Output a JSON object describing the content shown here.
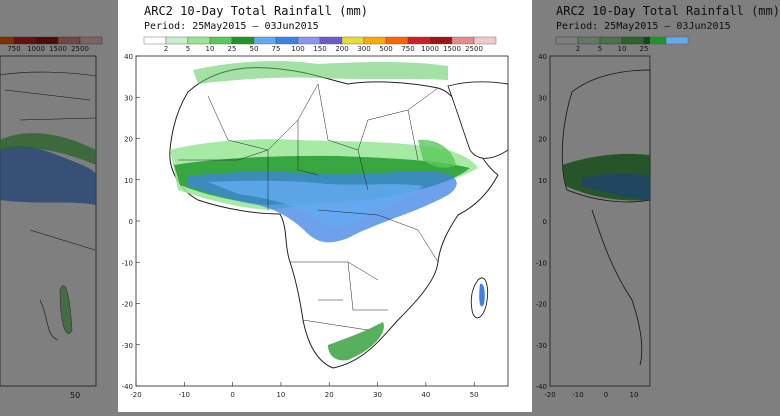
{
  "map": {
    "title": "ARC2 10-Day Total Rainfall (mm)",
    "period_label": "Period:",
    "period_start": "25May2015",
    "period_sep": "–",
    "period_end": "03Jun2015",
    "legend": {
      "labels": [
        "2",
        "5",
        "10",
        "25",
        "50",
        "75",
        "100",
        "150",
        "200",
        "300",
        "500",
        "750",
        "1000",
        "1500",
        "2500"
      ],
      "colors": [
        "#ffffff",
        "#c8f0c8",
        "#96e696",
        "#5ac85a",
        "#1e9628",
        "#64aaf0",
        "#3c82e6",
        "#8c96f0",
        "#6a5ad2",
        "#e6dc32",
        "#ffaa00",
        "#ff6400",
        "#d21e1e",
        "#a01414",
        "#e68c8c",
        "#f5c8c8"
      ]
    },
    "lat_ticks": [
      "40",
      "30",
      "20",
      "10",
      "0",
      "-10",
      "-20",
      "-30",
      "-40"
    ],
    "lon_ticks": [
      "-20",
      "-10",
      "0",
      "10",
      "20",
      "30",
      "40",
      "50"
    ]
  },
  "left_copy": {
    "legend_labels": [
      "750",
      "1000",
      "1500",
      "2500"
    ],
    "lon_ticks": [
      "50"
    ]
  },
  "right_copy": {
    "title": "ARC2 10-Day Total Rainfall (mm)",
    "period": "Period: 25May2015 – 03Jun2015",
    "legend_labels": [
      "2",
      "5",
      "10",
      "25"
    ],
    "lon_ticks": [
      "-20",
      "-10",
      "0",
      "10"
    ],
    "lat_ticks": [
      "40",
      "30",
      "20",
      "10",
      "0",
      "-10",
      "-20",
      "-30",
      "-40"
    ]
  }
}
